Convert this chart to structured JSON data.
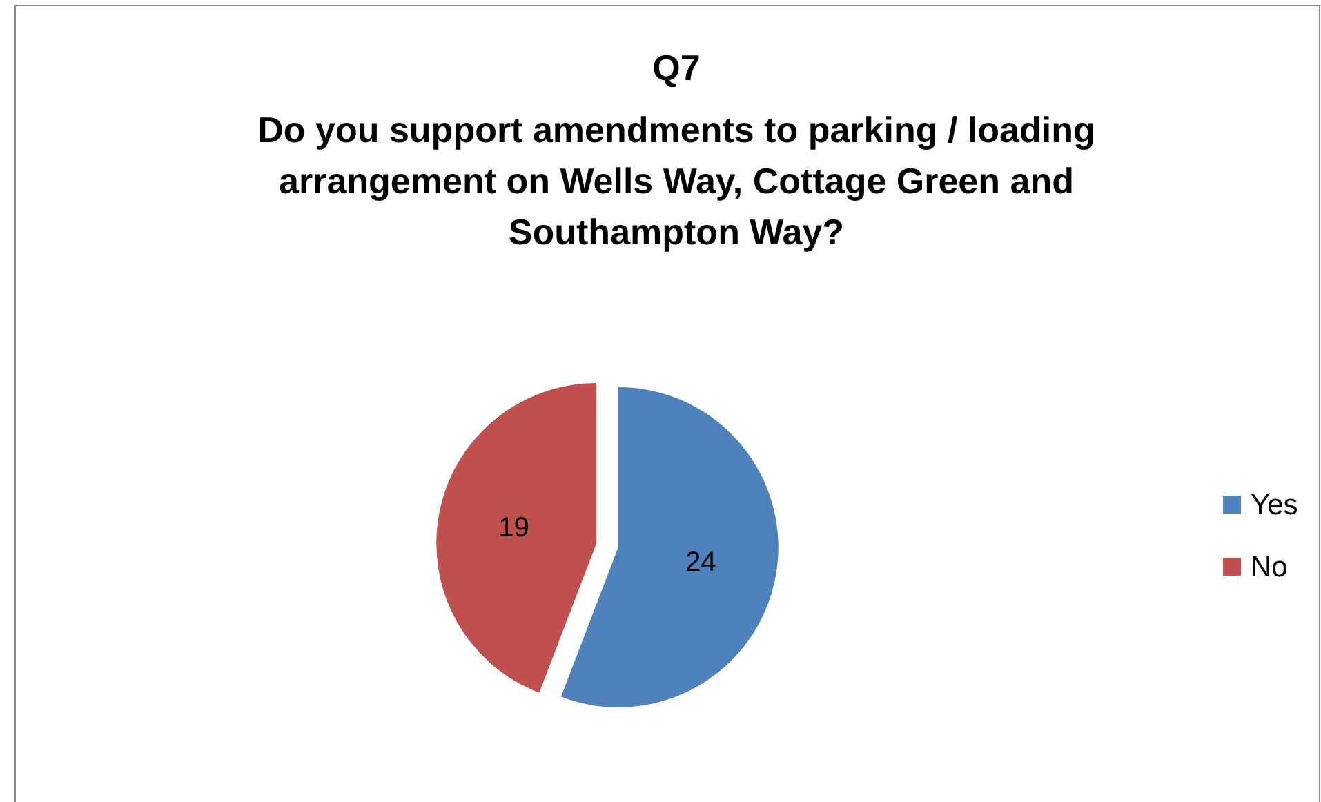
{
  "chart_data": {
    "type": "pie",
    "title": "Q7\nDo you support amendments to parking / loading\narrangement on Wells Way, Cottage Green and\nSouthampton Way?",
    "categories": [
      "Yes",
      "No"
    ],
    "values": [
      24,
      19
    ],
    "colors": [
      "#4f81bd",
      "#c0504d"
    ],
    "data_labels": true,
    "legend": "right"
  }
}
